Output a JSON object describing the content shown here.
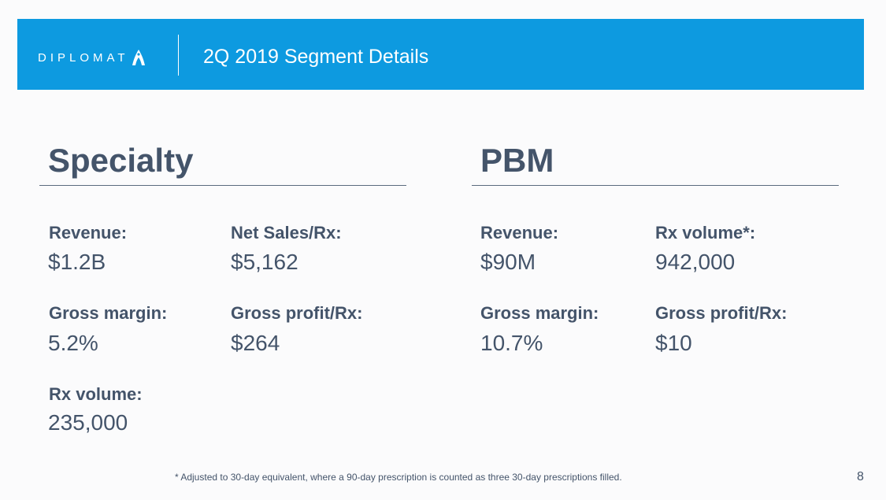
{
  "header": {
    "logo_text": "DIPLOMAT",
    "title": "2Q 2019 Segment Details"
  },
  "specialty": {
    "title": "Specialty",
    "revenue_label": "Revenue:",
    "revenue_value": "$1.2B",
    "net_sales_label": "Net Sales/Rx:",
    "net_sales_value": "$5,162",
    "gross_margin_label": "Gross margin:",
    "gross_margin_value": "5.2%",
    "gross_profit_label": "Gross profit/Rx:",
    "gross_profit_value": "$264",
    "rx_volume_label": "Rx volume:",
    "rx_volume_value": "235,000"
  },
  "pbm": {
    "title": "PBM",
    "revenue_label": "Revenue:",
    "revenue_value": "$90M",
    "rx_volume_label": "Rx volume*:",
    "rx_volume_value": "942,000",
    "gross_margin_label": "Gross margin:",
    "gross_margin_value": "10.7%",
    "gross_profit_label": "Gross profit/Rx:",
    "gross_profit_value": "$10"
  },
  "footnote": "* Adjusted to 30-day equivalent, where a 90-day prescription is counted as three 30-day prescriptions filled.",
  "page_number": "8",
  "colors": {
    "banner": "#0d9ae0",
    "text": "#44546a"
  }
}
